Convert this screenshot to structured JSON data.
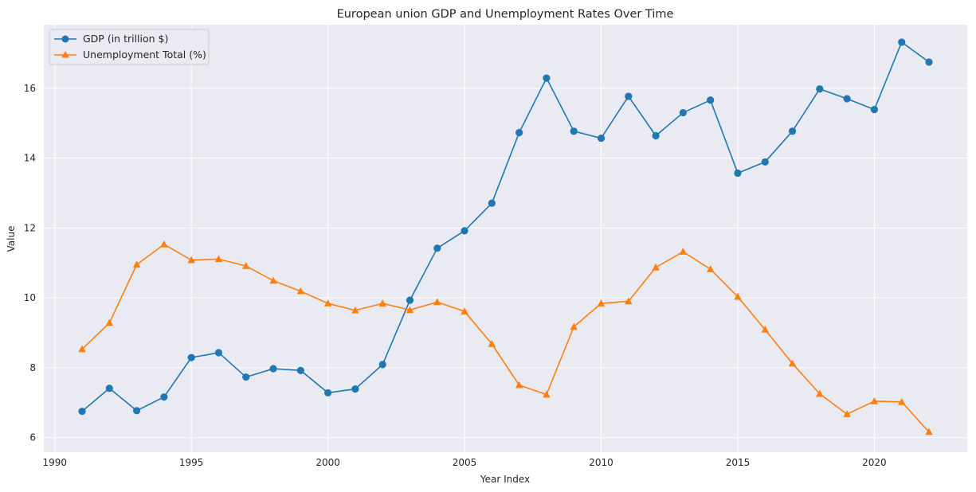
{
  "chart_data": {
    "type": "line",
    "title": "European union GDP and Unemployment Rates Over Time",
    "xlabel": "Year Index",
    "ylabel": "Value",
    "xlim": [
      1989.6,
      2023.4
    ],
    "ylim": [
      5.58,
      17.82
    ],
    "xticks": [
      1990,
      1995,
      2000,
      2005,
      2010,
      2015,
      2020
    ],
    "yticks": [
      6,
      8,
      10,
      12,
      14,
      16
    ],
    "grid": true,
    "legend_position": "top-left",
    "x": [
      1991,
      1992,
      1993,
      1994,
      1995,
      1996,
      1997,
      1998,
      1999,
      2000,
      2001,
      2002,
      2003,
      2004,
      2005,
      2006,
      2007,
      2008,
      2009,
      2010,
      2011,
      2012,
      2013,
      2014,
      2015,
      2016,
      2017,
      2018,
      2019,
      2020,
      2021,
      2022
    ],
    "series": [
      {
        "name": "GDP (in trillion $)",
        "color": "#1f77b4",
        "marker": "circle",
        "values": [
          6.75,
          7.41,
          6.77,
          7.16,
          8.29,
          8.43,
          7.73,
          7.97,
          7.92,
          7.28,
          7.39,
          8.09,
          9.93,
          11.42,
          11.92,
          12.71,
          14.73,
          16.29,
          14.77,
          14.57,
          15.77,
          14.64,
          15.3,
          15.66,
          13.57,
          13.89,
          14.77,
          15.98,
          15.7,
          15.39,
          17.32,
          16.75
        ]
      },
      {
        "name": "Unemployment Total (%)",
        "color": "#ff7f0e",
        "marker": "triangle",
        "values": [
          8.53,
          9.28,
          10.95,
          11.53,
          11.08,
          11.11,
          10.91,
          10.49,
          10.19,
          9.84,
          9.64,
          9.84,
          9.65,
          9.88,
          9.61,
          8.68,
          7.5,
          7.23,
          9.17,
          9.84,
          9.9,
          10.87,
          11.32,
          10.82,
          10.03,
          9.09,
          8.12,
          7.25,
          6.67,
          7.04,
          7.02,
          6.16
        ]
      }
    ]
  },
  "colors": {
    "plot_background": "#eaeaf2",
    "grid": "#ffffff",
    "text": "#262626"
  }
}
